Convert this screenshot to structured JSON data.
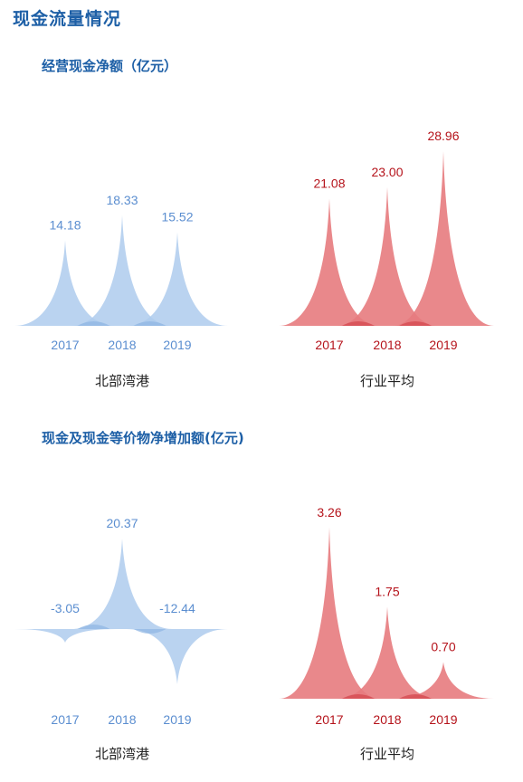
{
  "page_title": "现金流量情况",
  "colors": {
    "blue_fill": "#aecbed",
    "blue_overlap": "#8fb5e2",
    "blue_text": "#5b8ed0",
    "red_fill": "#e77b7e",
    "red_overlap": "#d3444b",
    "red_text": "#b5131b"
  },
  "chart_data": [
    {
      "type": "area",
      "title": "经营现金净额（亿元）",
      "groups": [
        {
          "name": "北部湾港",
          "color": "blue",
          "x": [
            "2017",
            "2018",
            "2019"
          ],
          "values": [
            14.18,
            18.33,
            15.52
          ],
          "labels": [
            "14.18",
            "18.33",
            "15.52"
          ]
        },
        {
          "name": "行业平均",
          "color": "red",
          "x": [
            "2017",
            "2018",
            "2019"
          ],
          "values": [
            21.08,
            23.0,
            28.96
          ],
          "labels": [
            "21.08",
            "23.00",
            "28.96"
          ]
        }
      ]
    },
    {
      "type": "area",
      "title": "现金及现金等价物净增加额(亿元)",
      "groups": [
        {
          "name": "北部湾港",
          "color": "blue",
          "x": [
            "2017",
            "2018",
            "2019"
          ],
          "values": [
            -3.05,
            20.37,
            -12.44
          ],
          "labels": [
            "-3.05",
            "20.37",
            "-12.44"
          ]
        },
        {
          "name": "行业平均",
          "color": "red",
          "x": [
            "2017",
            "2018",
            "2019"
          ],
          "values": [
            3.26,
            1.75,
            0.7
          ],
          "labels": [
            "3.26",
            "1.75",
            "0.70"
          ]
        }
      ]
    }
  ]
}
